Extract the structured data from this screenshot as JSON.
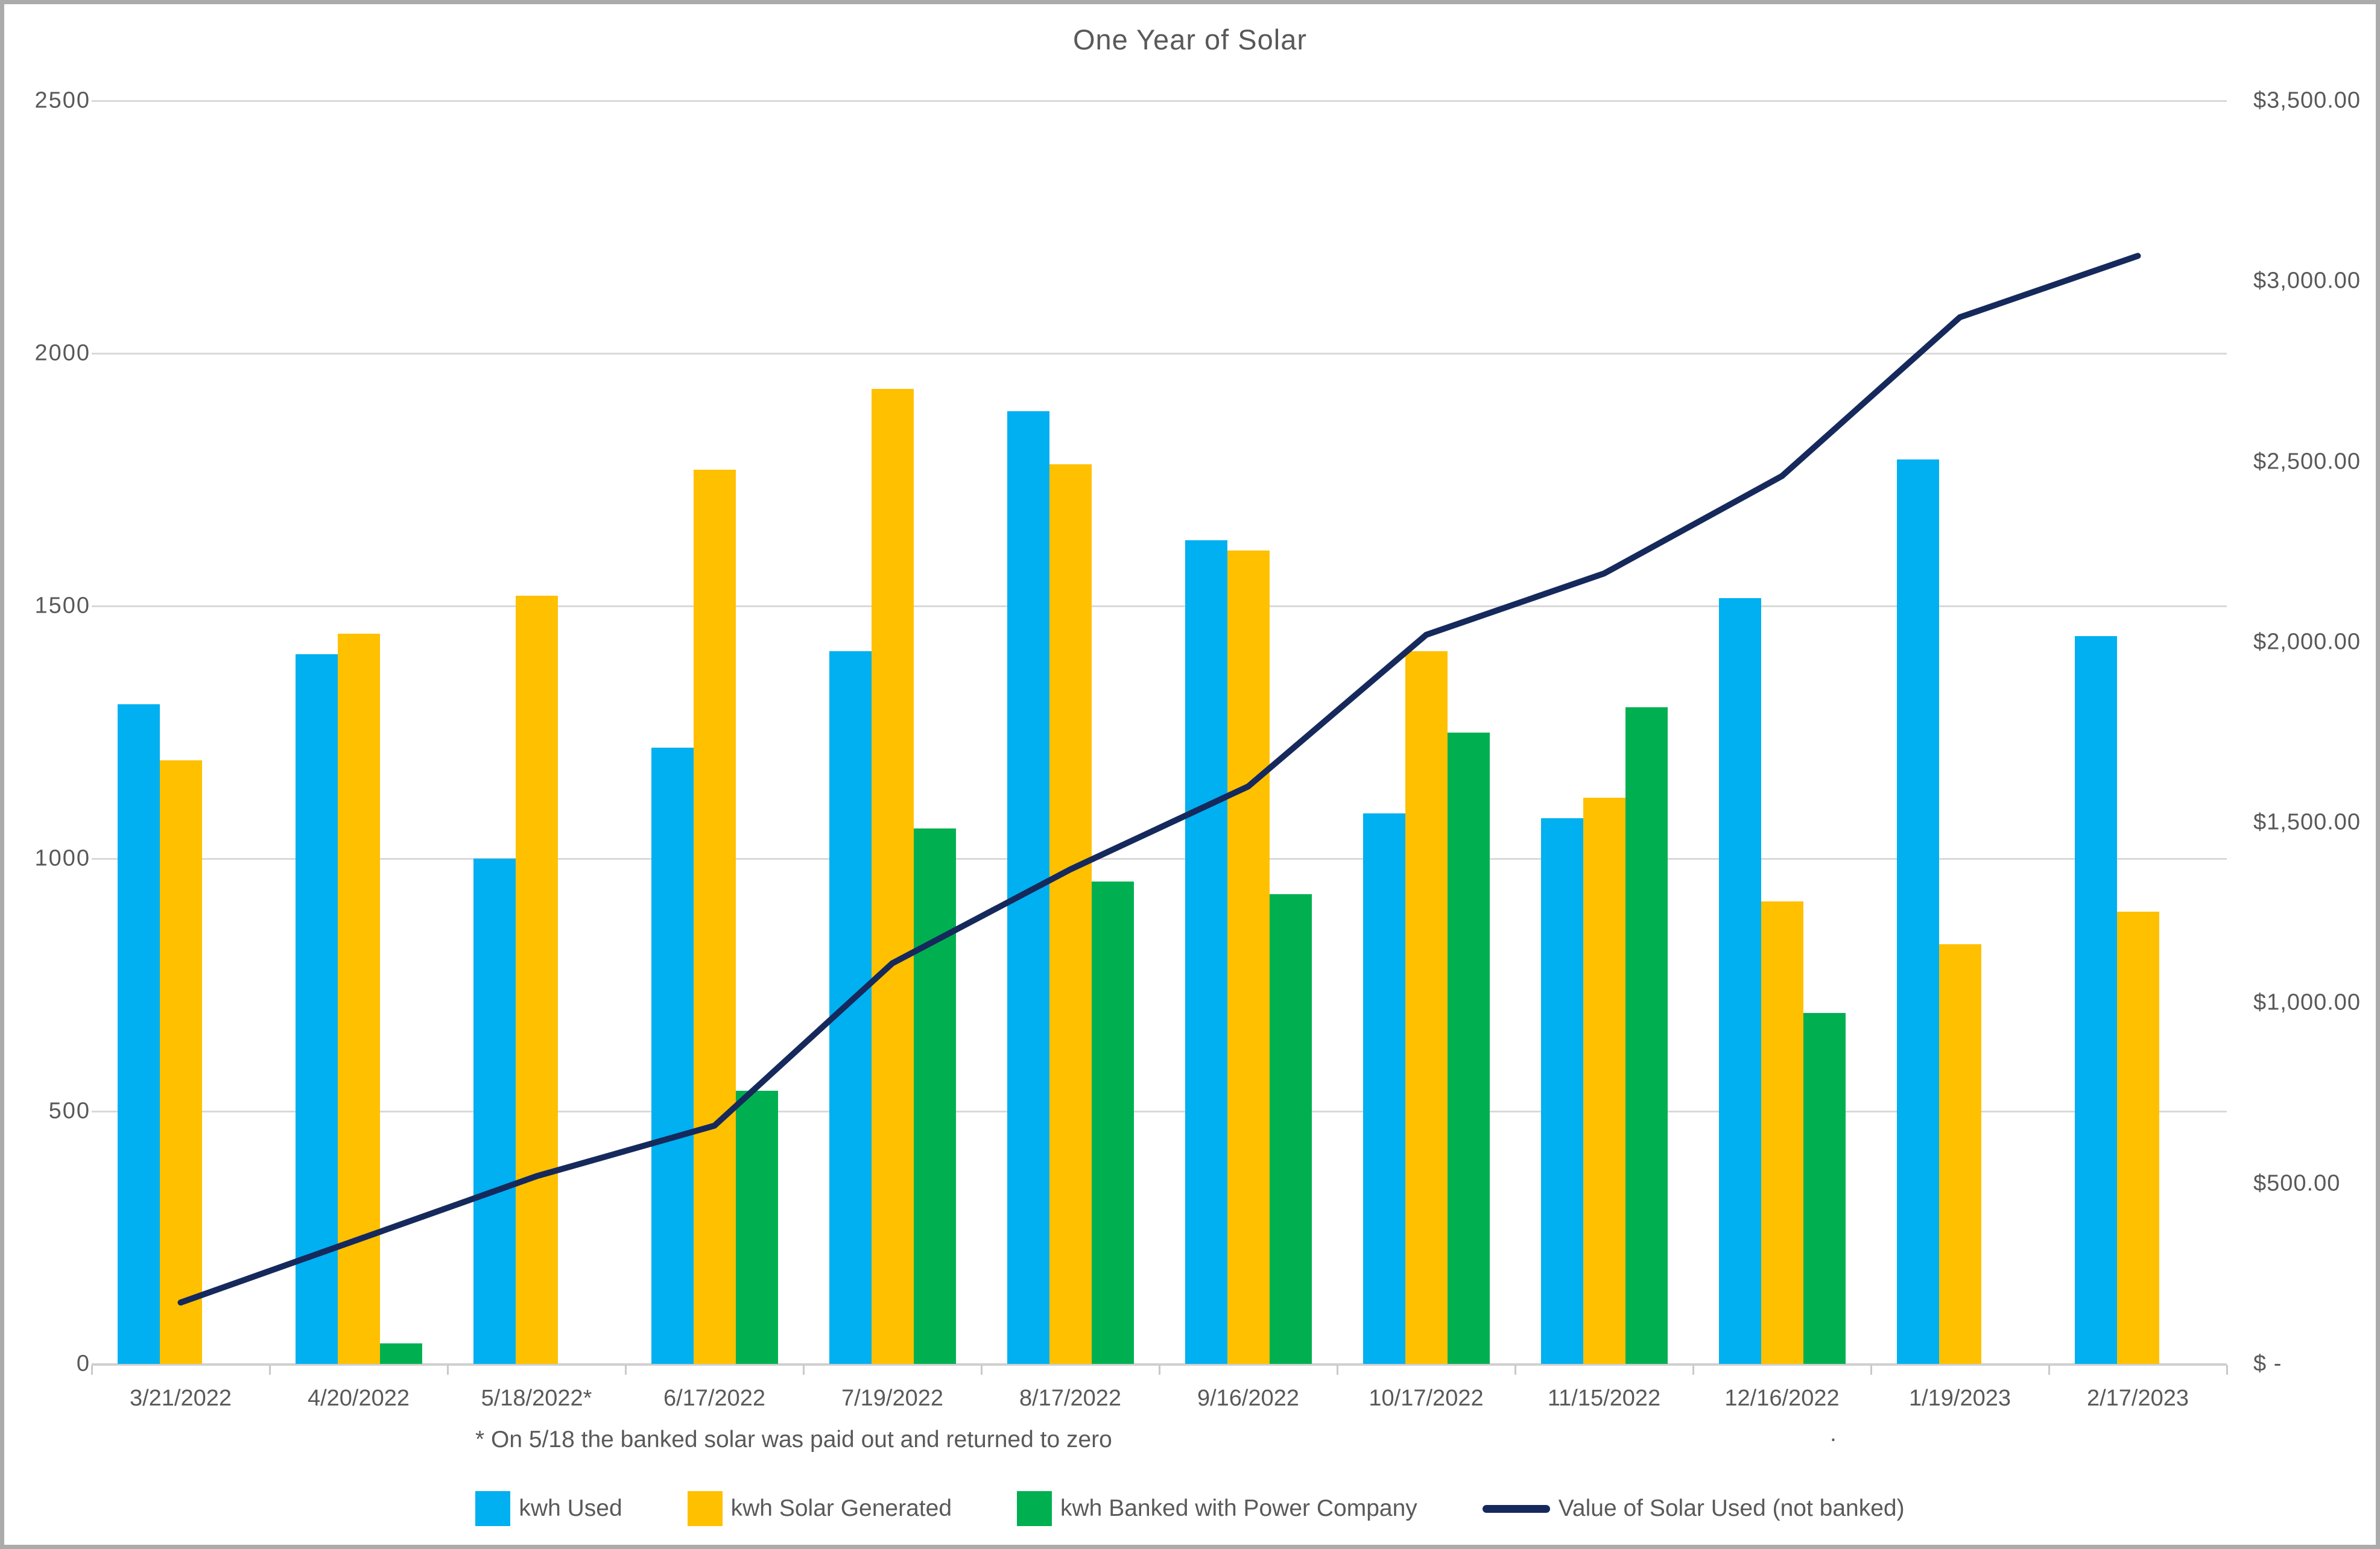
{
  "title": "One Year of Solar",
  "footnote": "* On 5/18 the banked solar was paid out and returned to zero",
  "stray_text": ".",
  "colors": {
    "text": "#595959",
    "gridline": "#d9d9d9",
    "axis_line": "#cfcfcf",
    "frame": "#ababab",
    "kwh_used": "#00b0f0",
    "kwh_solar_generated": "#ffc000",
    "kwh_banked": "#00b050",
    "value_line": "#16295c"
  },
  "chart_data": {
    "type": "bar",
    "subtype": "grouped-bars-with-line",
    "title": "One Year of Solar",
    "grid": true,
    "legend_position": "bottom",
    "categories": [
      "3/21/2022",
      "4/20/2022",
      "5/18/2022*",
      "6/17/2022",
      "7/19/2022",
      "8/17/2022",
      "9/16/2022",
      "10/17/2022",
      "11/15/2022",
      "12/16/2022",
      "1/19/2023",
      "2/17/2023"
    ],
    "series": [
      {
        "name": "kwh Used",
        "type": "bar",
        "axis": "left",
        "color": "#00b0f0",
        "values": [
          1305,
          1405,
          1000,
          1220,
          1410,
          1885,
          1630,
          1090,
          1080,
          1515,
          1790,
          1440
        ]
      },
      {
        "name": "kwh Solar Generated",
        "type": "bar",
        "axis": "left",
        "color": "#ffc000",
        "values": [
          1195,
          1445,
          1520,
          1770,
          1930,
          1780,
          1610,
          1410,
          1120,
          915,
          830,
          895
        ]
      },
      {
        "name": "kwh Banked with Power Company",
        "type": "bar",
        "axis": "left",
        "color": "#00b050",
        "values": [
          0,
          40,
          0,
          540,
          1060,
          955,
          930,
          1250,
          1300,
          695,
          0,
          0
        ]
      },
      {
        "name": "Value of Solar Used (not banked)",
        "type": "line",
        "axis": "right",
        "color": "#16295c",
        "values": [
          170,
          345,
          520,
          660,
          1110,
          1370,
          1600,
          2020,
          2190,
          2460,
          2900,
          3070
        ]
      }
    ],
    "left_axis": {
      "min": 0,
      "max": 2500,
      "step": 500,
      "tick_labels": [
        "0",
        "500",
        "1000",
        "1500",
        "2000",
        "2500"
      ]
    },
    "right_axis": {
      "min": 0,
      "max": 3500,
      "step": 500,
      "tick_labels": [
        "$ -",
        "$500.00",
        "$1,000.00",
        "$1,500.00",
        "$2,000.00",
        "$2,500.00",
        "$3,000.00",
        "$3,500.00"
      ]
    },
    "footnote": "* On 5/18 the banked solar was paid out and returned to zero"
  }
}
